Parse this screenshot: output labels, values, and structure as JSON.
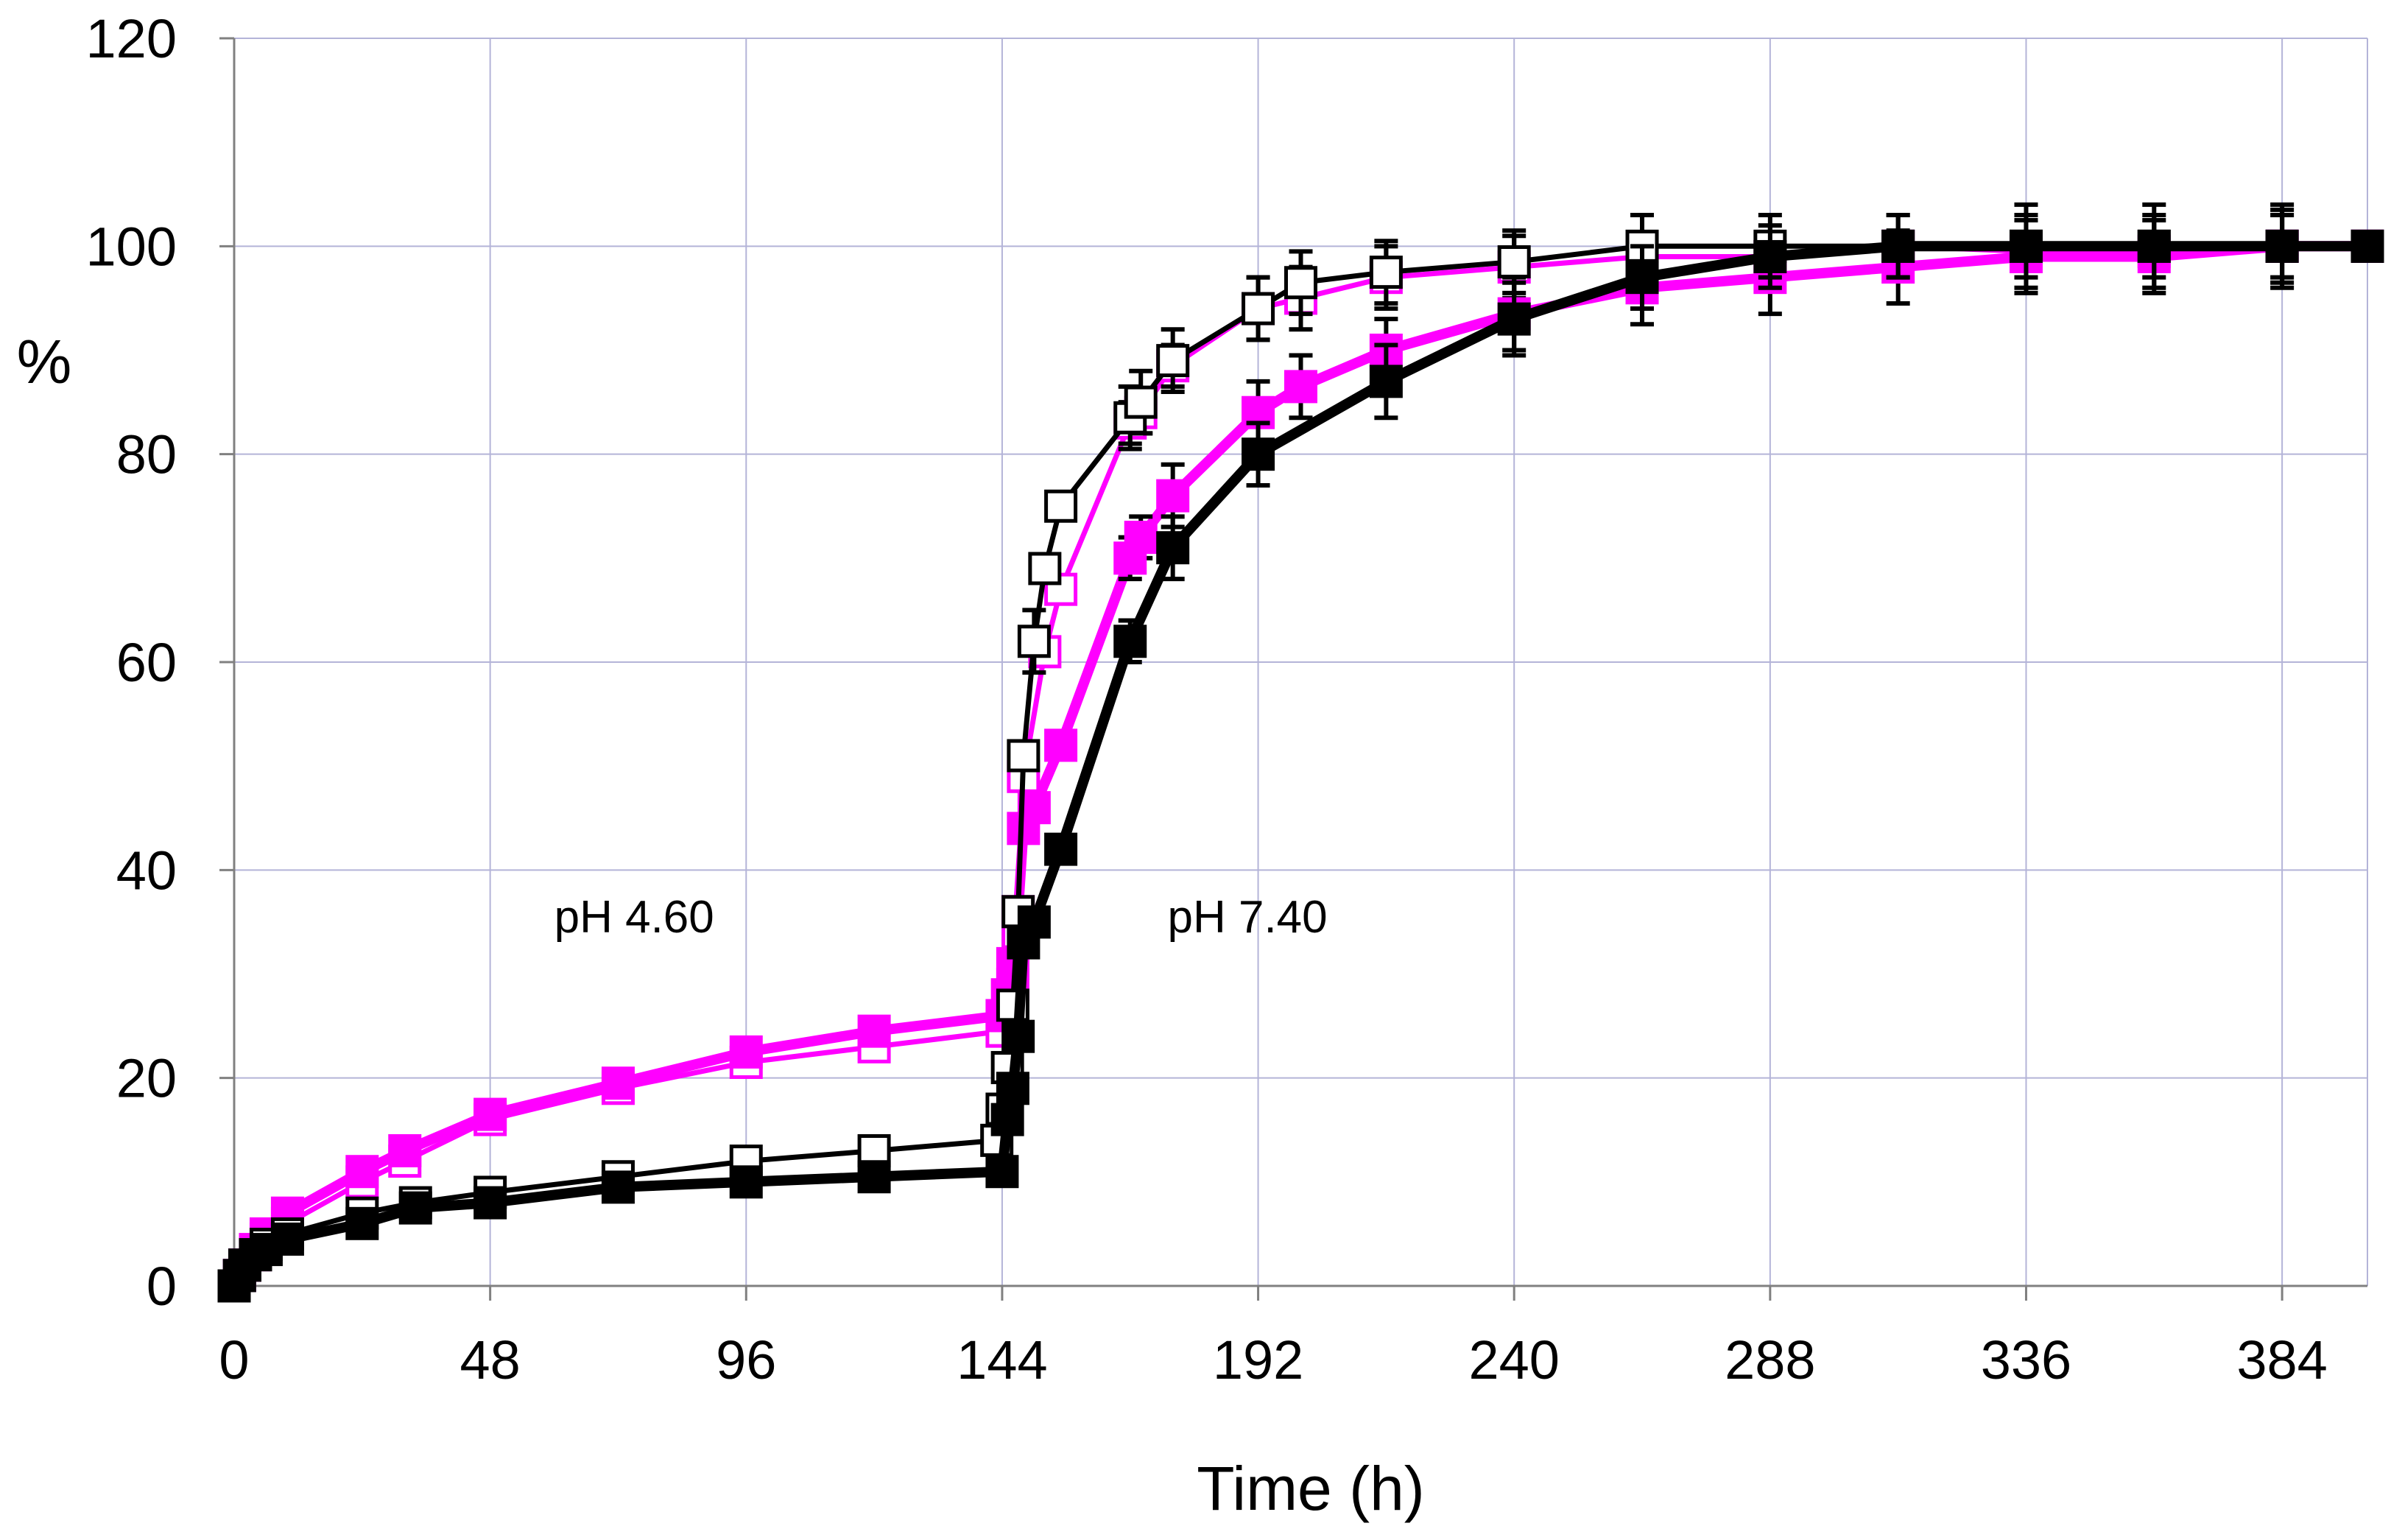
{
  "chart_data": {
    "type": "line",
    "title": "",
    "xlabel": "Time (h)",
    "ylabel": "%",
    "xlim": [
      0,
      400
    ],
    "ylim": [
      0,
      120
    ],
    "xticks": [
      0,
      48,
      96,
      144,
      192,
      240,
      288,
      336,
      384
    ],
    "yticks": [
      0,
      20,
      40,
      60,
      80,
      100,
      120
    ],
    "grid": true,
    "annotations": [
      {
        "text": "pH 4.60",
        "x": 75,
        "y": 34
      },
      {
        "text": "pH 7.40",
        "x": 190,
        "y": 34
      }
    ],
    "series": [
      {
        "name": "black-open",
        "color": "#000000",
        "marker": "open-square",
        "line_weight": "thin",
        "x": [
          0,
          1,
          2,
          4,
          6,
          10,
          24,
          34,
          48,
          72,
          96,
          120,
          143,
          144,
          145,
          146,
          147,
          148,
          150,
          152,
          155,
          168,
          170,
          176,
          192,
          200,
          216,
          240,
          264,
          288,
          312,
          336,
          360,
          384,
          400
        ],
        "y": [
          0,
          1,
          2,
          3,
          4,
          5,
          7,
          8,
          9,
          10.5,
          12,
          13,
          14,
          17,
          21,
          27,
          36,
          51,
          62,
          69,
          75,
          83.5,
          85,
          89,
          94,
          96.5,
          97.5,
          98.5,
          100,
          100,
          100,
          100,
          100,
          100,
          100
        ],
        "err": [
          0,
          0,
          0,
          0,
          0,
          0,
          0,
          0,
          0,
          0,
          0,
          0,
          0,
          0,
          0,
          0,
          0,
          0,
          3,
          0,
          0,
          3,
          3,
          3,
          3,
          3,
          3,
          3,
          3,
          3,
          3,
          3,
          3,
          3,
          0
        ]
      },
      {
        "name": "black-filled",
        "color": "#000000",
        "marker": "filled-square",
        "line_weight": "thick",
        "x": [
          0,
          1,
          2,
          4,
          6,
          10,
          24,
          34,
          48,
          72,
          96,
          120,
          144,
          145,
          146,
          147,
          148,
          150,
          155,
          168,
          176,
          192,
          216,
          240,
          264,
          288,
          312,
          336,
          360,
          384,
          400
        ],
        "y": [
          0,
          1,
          2,
          3,
          3.5,
          4.5,
          6,
          7.5,
          8,
          9.5,
          10,
          10.5,
          11,
          16,
          19,
          24,
          33,
          35,
          42,
          62,
          71,
          80,
          87,
          93,
          97,
          99,
          100,
          100,
          100,
          100,
          100
        ],
        "err": [
          0,
          0,
          0,
          0,
          0,
          0,
          0,
          0,
          0,
          0,
          0,
          0,
          0,
          0,
          0,
          0,
          0,
          0,
          0,
          2,
          3,
          3,
          3.5,
          3.5,
          3,
          3,
          3,
          4,
          4,
          4,
          0
        ]
      },
      {
        "name": "magenta-open",
        "color": "#ff00ff",
        "marker": "open-square",
        "line_weight": "thin",
        "x": [
          0,
          1,
          2,
          4,
          6,
          10,
          24,
          32,
          48,
          72,
          96,
          120,
          144,
          145,
          146,
          147,
          148,
          152,
          155,
          168,
          170,
          176,
          192,
          200,
          216,
          240,
          264,
          288,
          312,
          336,
          360,
          384,
          400
        ],
        "y": [
          0,
          1,
          2,
          3,
          4.5,
          6,
          10,
          12,
          16,
          19,
          21.5,
          23,
          24.5,
          26,
          29,
          34,
          49,
          61,
          67,
          83,
          84,
          88.5,
          94,
          95,
          97,
          98,
          99,
          99,
          100,
          99.5,
          99.5,
          100,
          100
        ],
        "err": [
          0,
          0,
          0,
          0,
          0,
          0,
          0,
          0,
          0,
          0,
          0,
          0,
          0,
          0,
          0,
          0,
          0,
          0,
          0,
          2,
          2,
          2,
          3,
          3,
          3,
          3,
          0,
          0,
          0,
          0,
          0,
          0,
          0
        ]
      },
      {
        "name": "magenta-filled",
        "color": "#ff00ff",
        "marker": "filled-square",
        "line_weight": "thick",
        "x": [
          0,
          1,
          2,
          4,
          6,
          10,
          24,
          32,
          48,
          72,
          96,
          120,
          144,
          145,
          146,
          147,
          148,
          150,
          155,
          168,
          170,
          176,
          192,
          200,
          216,
          240,
          264,
          288,
          312,
          336,
          360,
          384,
          400
        ],
        "y": [
          0,
          1,
          2,
          3.5,
          5,
          7,
          11,
          13,
          16.5,
          19.5,
          22.5,
          24.5,
          26,
          28,
          31,
          36,
          44,
          46,
          52,
          70,
          72,
          76,
          84,
          86.5,
          90,
          93.5,
          96,
          97,
          98,
          99,
          99,
          100,
          100
        ],
        "err": [
          0,
          0,
          0,
          0,
          0,
          0,
          0,
          0,
          0,
          0,
          0,
          0,
          0,
          0,
          0,
          0,
          0,
          0,
          0,
          2,
          2,
          3,
          3,
          3,
          3,
          3.5,
          3.5,
          3.5,
          3.5,
          3.5,
          3.5,
          3.5,
          0
        ]
      }
    ]
  }
}
